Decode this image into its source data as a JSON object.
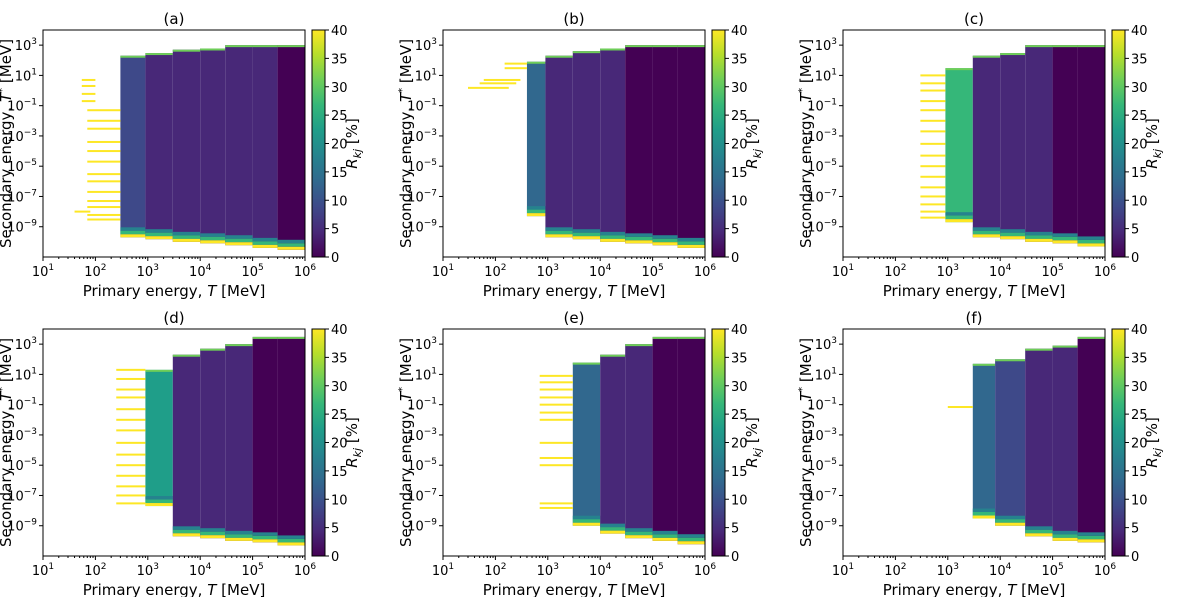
{
  "chart_data": {
    "type": "heatmap",
    "xlabel": "Primary energy, T [MeV]",
    "ylabel": "Secondary energy, T* [MeV]",
    "x_scale": "log",
    "y_scale": "log",
    "xlim": [
      10,
      1000000
    ],
    "ylim": [
      1e-11,
      10000
    ],
    "x_ticks": [
      {
        "base": "10",
        "exp": "1"
      },
      {
        "base": "10",
        "exp": "2"
      },
      {
        "base": "10",
        "exp": "3"
      },
      {
        "base": "10",
        "exp": "4"
      },
      {
        "base": "10",
        "exp": "5"
      },
      {
        "base": "10",
        "exp": "6"
      }
    ],
    "y_ticks": [
      {
        "base": "10",
        "exp": "3"
      },
      {
        "base": "10",
        "exp": "1"
      },
      {
        "base": "10",
        "exp": "−1"
      },
      {
        "base": "10",
        "exp": "−3"
      },
      {
        "base": "10",
        "exp": "−5"
      },
      {
        "base": "10",
        "exp": "−7"
      },
      {
        "base": "10",
        "exp": "−9"
      }
    ],
    "colorbar": {
      "label": "R_kj [%]",
      "label_main": "R",
      "label_sub": "kj",
      "label_unit": " [%]",
      "range": [
        0,
        40
      ],
      "ticks": [
        "0",
        "5",
        "10",
        "15",
        "20",
        "25",
        "30",
        "35",
        "40"
      ]
    },
    "panels": [
      {
        "title": "(a)",
        "sparse": {
          "x_range": [
            70,
            300
          ],
          "y_range": [
            1e-08,
            5
          ],
          "lines": [
            [
              55,
              100,
              5
            ],
            [
              55,
              100,
              2
            ],
            [
              55,
              100,
              0.6
            ],
            [
              55,
              100,
              0.2
            ],
            [
              40,
              80,
              1e-08
            ],
            [
              70,
              300,
              0.05
            ],
            [
              70,
              300,
              0.01
            ],
            [
              70,
              300,
              0.003
            ],
            [
              70,
              300,
              0.0004
            ],
            [
              70,
              300,
              0.0001
            ],
            [
              70,
              300,
              2e-05
            ],
            [
              70,
              300,
              3e-06
            ],
            [
              70,
              300,
              1e-06
            ],
            [
              70,
              300,
              2e-07
            ],
            [
              70,
              300,
              5e-08
            ],
            [
              70,
              300,
              2e-08
            ],
            [
              70,
              300,
              6e-09
            ],
            [
              70,
              300,
              3e-09
            ]
          ]
        },
        "bins": [
          {
            "x": [
              300,
              900
            ],
            "y": [
              2e-10,
              200
            ],
            "base": 8
          },
          {
            "x": [
              900,
              3000
            ],
            "y": [
              1.5e-10,
              300
            ],
            "base": 6
          },
          {
            "x": [
              3000,
              10000
            ],
            "y": [
              1e-10,
              500
            ],
            "base": 5
          },
          {
            "x": [
              10000,
              30000
            ],
            "y": [
              8e-11,
              600
            ],
            "base": 4
          },
          {
            "x": [
              30000,
              100000
            ],
            "y": [
              6e-11,
              1000
            ],
            "base": 3
          },
          {
            "x": [
              100000,
              300000
            ],
            "y": [
              4e-11,
              1000
            ],
            "base": 3
          },
          {
            "x": [
              300000,
              1000000
            ],
            "y": [
              3e-11,
              1000
            ],
            "base": 2
          }
        ]
      },
      {
        "title": "(b)",
        "sparse": {
          "x_range": [
            30,
            400
          ],
          "y_range": [
            1,
            100
          ],
          "lines": [
            [
              60,
              300,
              5
            ],
            [
              50,
              250,
              3
            ],
            [
              30,
              180,
              1.5
            ],
            [
              150,
              400,
              60
            ],
            [
              150,
              400,
              30
            ]
          ]
        },
        "bins": [
          {
            "x": [
              400,
              900
            ],
            "y": [
              5e-09,
              80
            ],
            "base": 12
          },
          {
            "x": [
              900,
              3000
            ],
            "y": [
              2e-10,
              200
            ],
            "base": 5
          },
          {
            "x": [
              3000,
              10000
            ],
            "y": [
              1.5e-10,
              400
            ],
            "base": 4
          },
          {
            "x": [
              10000,
              30000
            ],
            "y": [
              1e-10,
              600
            ],
            "base": 3
          },
          {
            "x": [
              30000,
              100000
            ],
            "y": [
              8e-11,
              1000
            ],
            "base": 2
          },
          {
            "x": [
              100000,
              300000
            ],
            "y": [
              6e-11,
              1000
            ],
            "base": 2
          },
          {
            "x": [
              300000,
              1000000
            ],
            "y": [
              4e-11,
              1000
            ],
            "base": 2
          }
        ]
      },
      {
        "title": "(c)",
        "sparse": {
          "x_range": [
            300,
            900
          ],
          "y_range": [
            3e-09,
            10
          ],
          "lines": [
            [
              300,
              900,
              10
            ],
            [
              300,
              900,
              3
            ],
            [
              300,
              900,
              1
            ],
            [
              300,
              900,
              0.2
            ],
            [
              300,
              900,
              0.05
            ],
            [
              300,
              900,
              0.01
            ],
            [
              300,
              900,
              0.002
            ],
            [
              300,
              900,
              0.0003
            ],
            [
              300,
              900,
              5e-05
            ],
            [
              300,
              900,
              1e-05
            ],
            [
              300,
              900,
              2e-06
            ],
            [
              300,
              900,
              4e-07
            ],
            [
              300,
              900,
              1e-07
            ],
            [
              300,
              900,
              3e-08
            ],
            [
              300,
              900,
              1e-08
            ],
            [
              300,
              900,
              4e-09
            ]
          ]
        },
        "bins": [
          {
            "x": [
              900,
              3000
            ],
            "y": [
              2e-09,
              30
            ],
            "base": 25
          },
          {
            "x": [
              3000,
              10000
            ],
            "y": [
              2e-10,
              200
            ],
            "base": 5
          },
          {
            "x": [
              10000,
              30000
            ],
            "y": [
              1.5e-10,
              300
            ],
            "base": 4
          },
          {
            "x": [
              30000,
              100000
            ],
            "y": [
              1e-10,
              1000
            ],
            "base": 3
          },
          {
            "x": [
              100000,
              300000
            ],
            "y": [
              8e-11,
              1000
            ],
            "base": 2
          },
          {
            "x": [
              300000,
              1000000
            ],
            "y": [
              5e-11,
              1000
            ],
            "base": 2
          }
        ]
      },
      {
        "title": "(d)",
        "sparse": {
          "x_range": [
            250,
            900
          ],
          "y_range": [
            3e-08,
            20
          ],
          "lines": [
            [
              250,
              900,
              20
            ],
            [
              250,
              900,
              5
            ],
            [
              250,
              900,
              1
            ],
            [
              250,
              900,
              0.3
            ],
            [
              250,
              900,
              0.05
            ],
            [
              250,
              900,
              0.01
            ],
            [
              250,
              900,
              0.002
            ],
            [
              250,
              900,
              0.0003
            ],
            [
              250,
              900,
              5e-05
            ],
            [
              250,
              900,
              1e-05
            ],
            [
              250,
              900,
              2e-06
            ],
            [
              250,
              900,
              4e-07
            ],
            [
              250,
              900,
              1e-07
            ],
            [
              250,
              900,
              3e-08
            ]
          ]
        },
        "bins": [
          {
            "x": [
              900,
              3000
            ],
            "y": [
              2e-08,
              20
            ],
            "base": 20
          },
          {
            "x": [
              3000,
              10000
            ],
            "y": [
              2e-10,
              200
            ],
            "base": 4
          },
          {
            "x": [
              10000,
              30000
            ],
            "y": [
              1.5e-10,
              500
            ],
            "base": 3
          },
          {
            "x": [
              30000,
              100000
            ],
            "y": [
              1e-10,
              1000
            ],
            "base": 3
          },
          {
            "x": [
              100000,
              300000
            ],
            "y": [
              8e-11,
              3000
            ],
            "base": 2
          },
          {
            "x": [
              300000,
              1000000
            ],
            "y": [
              5e-11,
              3000
            ],
            "base": 2
          }
        ]
      },
      {
        "title": "(e)",
        "sparse": {
          "x_range": [
            700,
            3000
          ],
          "y_range": [
            2e-08,
            8
          ],
          "lines": [
            [
              700,
              3000,
              8
            ],
            [
              700,
              3000,
              3
            ],
            [
              700,
              3000,
              1
            ],
            [
              700,
              3000,
              0.3
            ],
            [
              700,
              3000,
              0.1
            ],
            [
              700,
              3000,
              0.03
            ],
            [
              700,
              3000,
              0.01
            ],
            [
              700,
              3000,
              0.0003
            ],
            [
              700,
              3000,
              3e-05
            ],
            [
              700,
              3000,
              1e-05
            ],
            [
              700,
              3000,
              3e-08
            ],
            [
              700,
              3000,
              1.5e-08
            ]
          ]
        },
        "bins": [
          {
            "x": [
              3000,
              10000
            ],
            "y": [
              1e-09,
              60
            ],
            "base": 12
          },
          {
            "x": [
              10000,
              30000
            ],
            "y": [
              3e-10,
              200
            ],
            "base": 5
          },
          {
            "x": [
              30000,
              100000
            ],
            "y": [
              1.5e-10,
              1000
            ],
            "base": 3
          },
          {
            "x": [
              100000,
              300000
            ],
            "y": [
              1e-10,
              3000
            ],
            "base": 2
          },
          {
            "x": [
              300000,
              1000000
            ],
            "y": [
              6e-11,
              3000
            ],
            "base": 2
          }
        ]
      },
      {
        "title": "(f)",
        "sparse": {
          "x_range": [
            1000,
            3000
          ],
          "y_range": [
            0.05,
            0.1
          ],
          "lines": [
            [
              1000,
              3000,
              0.07
            ]
          ]
        },
        "bins": [
          {
            "x": [
              3000,
              8000
            ],
            "y": [
              3e-09,
              50
            ],
            "base": 12
          },
          {
            "x": [
              8000,
              30000
            ],
            "y": [
              1e-09,
              100
            ],
            "base": 10
          },
          {
            "x": [
              30000,
              100000
            ],
            "y": [
              2e-10,
              500
            ],
            "base": 4
          },
          {
            "x": [
              100000,
              300000
            ],
            "y": [
              1e-10,
              800
            ],
            "base": 3
          },
          {
            "x": [
              300000,
              1000000
            ],
            "y": [
              8e-11,
              3000
            ],
            "base": 2
          }
        ]
      }
    ]
  },
  "colors": {
    "viridis": [
      "#440154",
      "#482878",
      "#3e4989",
      "#31688e",
      "#26828e",
      "#1f9e89",
      "#35b779",
      "#6ece58",
      "#b5de2b",
      "#fde725"
    ],
    "highlight": "#fde725"
  }
}
